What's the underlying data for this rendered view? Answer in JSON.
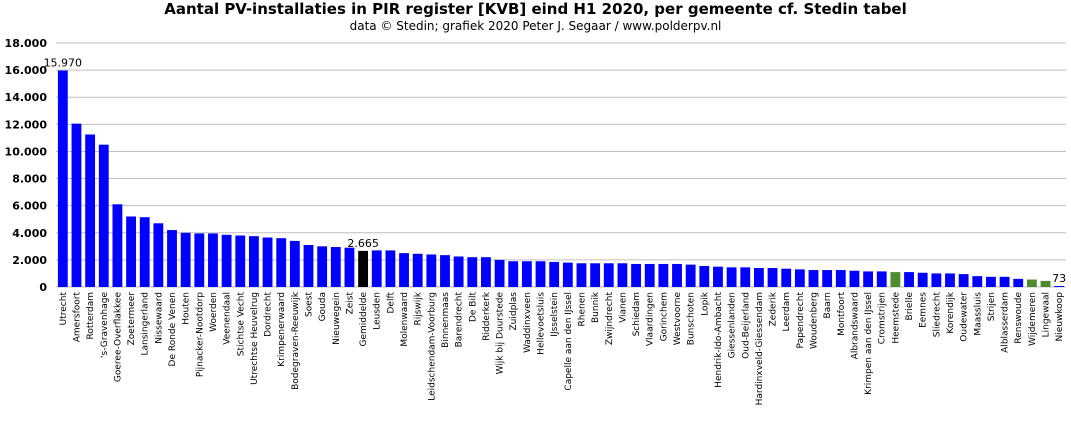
{
  "chart_data": {
    "type": "bar",
    "title": "Aantal PV-installaties in PIR register [KVB] eind H1 2020, per gemeente cf. Stedin tabel",
    "subtitle": "data © Stedin; grafiek 2020 Peter J. Segaar / www.polderpv.nl",
    "xlabel": "",
    "ylabel": "",
    "ylim": [
      0,
      18000
    ],
    "yticks": [
      "0",
      "2.000",
      "4.000",
      "6.000",
      "8.000",
      "10.000",
      "12.000",
      "14.000",
      "16.000",
      "18.000"
    ],
    "grid": true,
    "legend": "none",
    "colors": {
      "default": "#0000ff",
      "highlight": "#000000",
      "green": "#4e8a2e",
      "grid": "#bfbfbf"
    },
    "categories": [
      "Utrecht",
      "Amersfoort",
      "Rotterdam",
      "'s-Gravenhage",
      "Goeree-Overflakkee",
      "Zoetermeer",
      "Lansingerland",
      "Nissewaard",
      "De Ronde Venen",
      "Houten",
      "Pijnacker-Nootdorp",
      "Woerden",
      "Veenendaal",
      "Stichtse Vecht",
      "Utrechtse Heuvelrug",
      "Dordrecht",
      "Krimpenerwaard",
      "Bodegraven-Reeuwijk",
      "Soest",
      "Gouda",
      "Nieuwegein",
      "Zeist",
      "Gemiddelde",
      "Leusden",
      "Delft",
      "Molenwaard",
      "Rijswijk",
      "Leidschendam-Voorburg",
      "Binnenmaas",
      "Barendrecht",
      "De Bilt",
      "Ridderkerk",
      "Wijk bij Duurstede",
      "Zuidplas",
      "Waddinxveen",
      "Hellevoetsluis",
      "IJsselstein",
      "Capelle aan den IJssel",
      "Rhenen",
      "Bunnik",
      "Zwijndrecht",
      "Vianen",
      "Schiedam",
      "Vlaardingen",
      "Gorinchem",
      "Westvoorne",
      "Bunschoten",
      "Lopik",
      "Hendrik-Ido-Ambacht",
      "Giessenlanden",
      "Oud-Beijerland",
      "Hardinxveld-Giessendam",
      "Zederik",
      "Leerdam",
      "Papendrecht",
      "Woudenberg",
      "Baarn",
      "Montfoort",
      "Albrandswaard",
      "Krimpen aan den IJssel",
      "Cromstrijen",
      "Heemstede",
      "Brielle",
      "Eemnes",
      "Sliedrecht",
      "Korendijk",
      "Oudewater",
      "Maassluis",
      "Strijen",
      "Alblasserdam",
      "Renswoude",
      "Wijdemeren",
      "Lingewaal",
      "Nieuwkoop"
    ],
    "values": [
      15970,
      12050,
      11250,
      10500,
      6100,
      5200,
      5150,
      4700,
      4200,
      4000,
      3950,
      3950,
      3850,
      3800,
      3750,
      3650,
      3600,
      3400,
      3100,
      3000,
      2950,
      2900,
      2665,
      2700,
      2700,
      2500,
      2450,
      2400,
      2350,
      2250,
      2200,
      2200,
      2000,
      1900,
      1900,
      1900,
      1850,
      1800,
      1750,
      1750,
      1750,
      1750,
      1700,
      1700,
      1700,
      1700,
      1650,
      1550,
      1500,
      1450,
      1450,
      1400,
      1400,
      1350,
      1300,
      1250,
      1250,
      1250,
      1200,
      1150,
      1150,
      1100,
      1100,
      1050,
      1000,
      1000,
      950,
      800,
      750,
      750,
      600,
      550,
      450,
      73
    ],
    "bar_colors": [
      "blue",
      "blue",
      "blue",
      "blue",
      "blue",
      "blue",
      "blue",
      "blue",
      "blue",
      "blue",
      "blue",
      "blue",
      "blue",
      "blue",
      "blue",
      "blue",
      "blue",
      "blue",
      "blue",
      "blue",
      "blue",
      "blue",
      "black",
      "blue",
      "blue",
      "blue",
      "blue",
      "blue",
      "blue",
      "blue",
      "blue",
      "blue",
      "blue",
      "blue",
      "blue",
      "blue",
      "blue",
      "blue",
      "blue",
      "blue",
      "blue",
      "blue",
      "blue",
      "blue",
      "blue",
      "blue",
      "blue",
      "blue",
      "blue",
      "blue",
      "blue",
      "blue",
      "blue",
      "blue",
      "blue",
      "blue",
      "blue",
      "blue",
      "blue",
      "blue",
      "blue",
      "green",
      "blue",
      "blue",
      "blue",
      "blue",
      "blue",
      "blue",
      "blue",
      "blue",
      "blue",
      "green",
      "green",
      "blue"
    ],
    "data_labels": [
      {
        "index": 0,
        "text": "15.970"
      },
      {
        "index": 22,
        "text": "2.665"
      },
      {
        "index": 73,
        "text": "73"
      }
    ]
  }
}
